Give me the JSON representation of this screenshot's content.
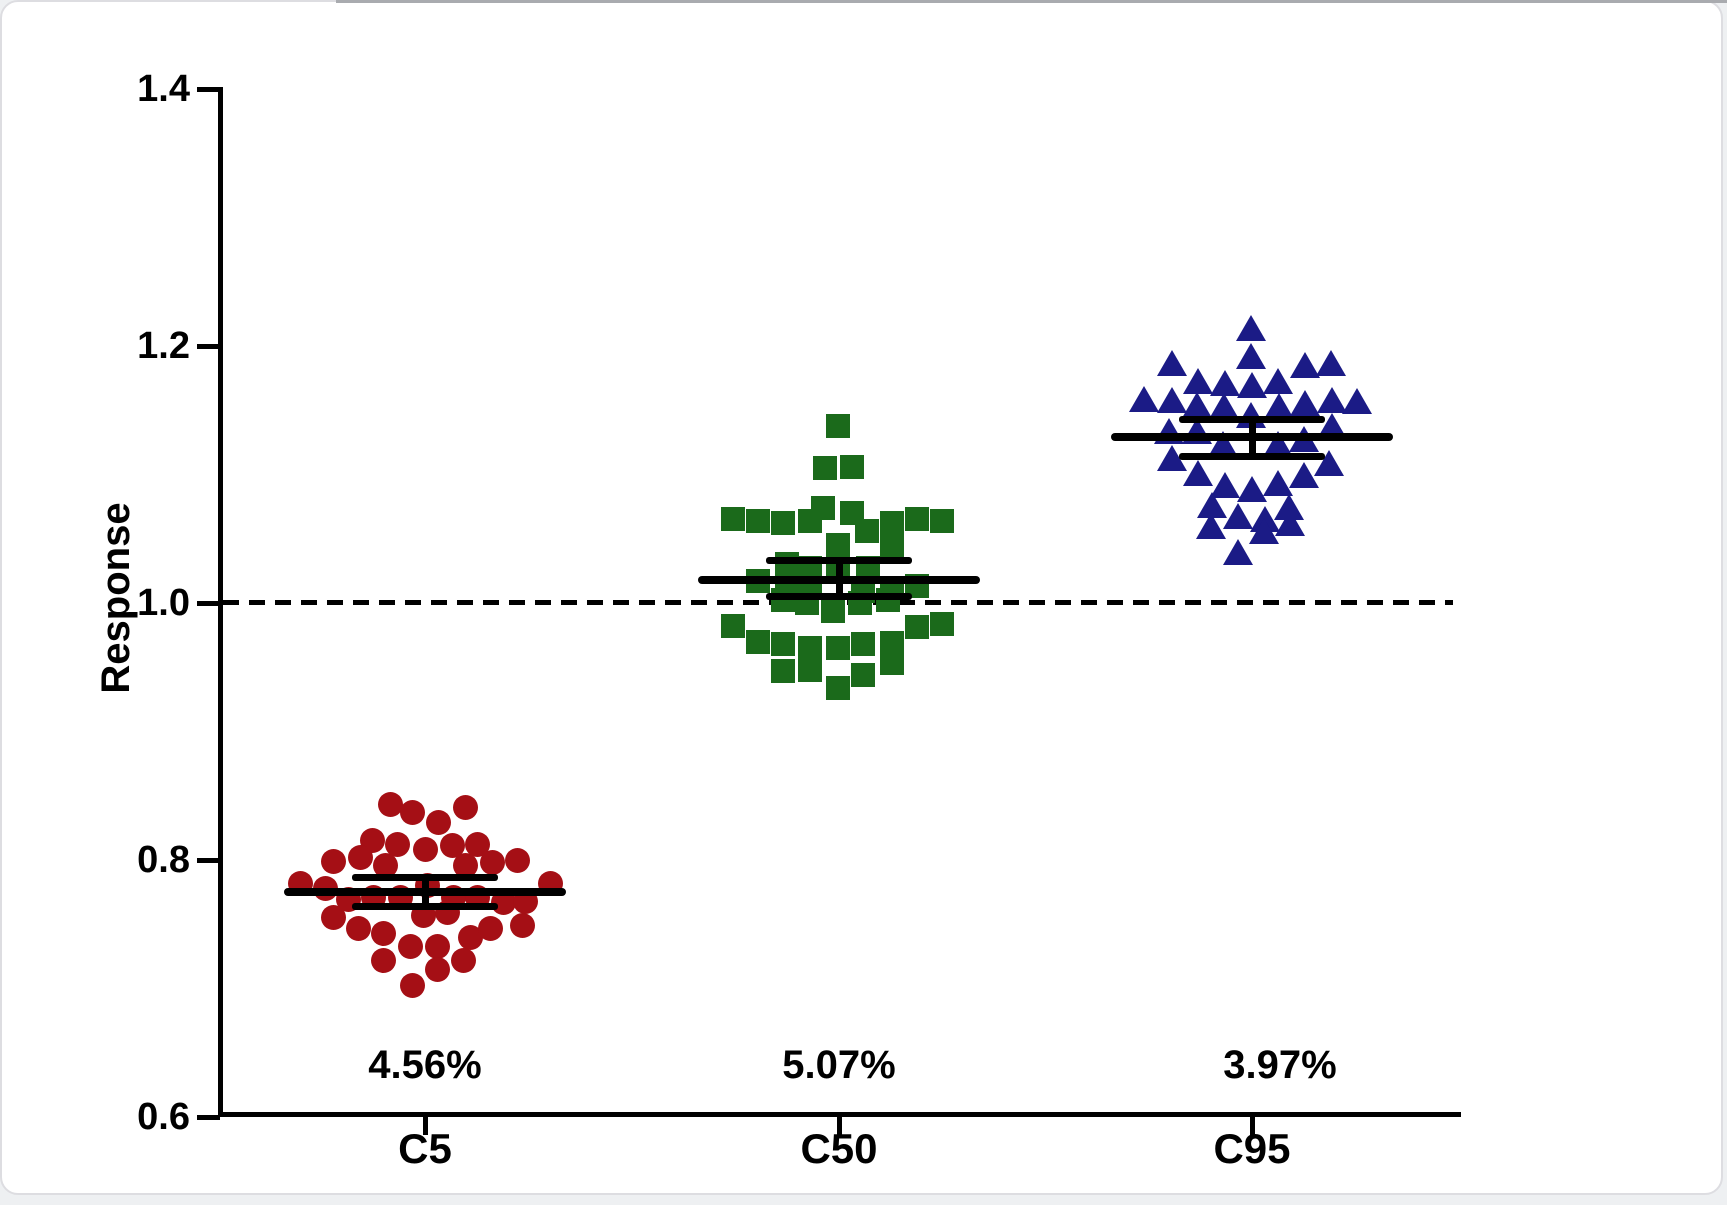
{
  "chart_data": {
    "type": "scatter",
    "subtype": "dot-plot-with-mean-error-bars",
    "title": "",
    "xlabel": "",
    "ylabel": "Response",
    "ylim": [
      0.6,
      1.4
    ],
    "yticks": [
      {
        "value": 1.4,
        "label": "1.4"
      },
      {
        "value": 1.2,
        "label": "1.2"
      },
      {
        "value": 1.0,
        "label": "1.0"
      },
      {
        "value": 0.8,
        "label": "0.8"
      },
      {
        "value": 0.6,
        "label": "0.6"
      }
    ],
    "reference_line": {
      "value": 1.0,
      "style": "dashed",
      "color": "#000000"
    },
    "grid": false,
    "legend": false,
    "axis_color": "#000000",
    "groups": [
      {
        "label": "C5",
        "cv_label": "4.56%",
        "marker": "circle",
        "color": "#A50F15",
        "mean": 0.775,
        "err_high": 0.786,
        "err_low": 0.764,
        "points": [
          [
            -35,
            0.843
          ],
          [
            -13,
            0.837
          ],
          [
            13,
            0.829
          ],
          [
            40,
            0.841
          ],
          [
            -53,
            0.815
          ],
          [
            -28,
            0.812
          ],
          [
            0,
            0.808
          ],
          [
            27,
            0.811
          ],
          [
            52,
            0.812
          ],
          [
            -92,
            0.799
          ],
          [
            -65,
            0.802
          ],
          [
            -40,
            0.796
          ],
          [
            40,
            0.796
          ],
          [
            67,
            0.798
          ],
          [
            92,
            0.8
          ],
          [
            -125,
            0.782
          ],
          [
            -100,
            0.778
          ],
          [
            125,
            0.782
          ],
          [
            -77,
            0.769
          ],
          [
            -52,
            0.771
          ],
          [
            -25,
            0.771
          ],
          [
            2,
            0.78
          ],
          [
            28,
            0.771
          ],
          [
            52,
            0.771
          ],
          [
            78,
            0.767
          ],
          [
            100,
            0.768
          ],
          [
            -92,
            0.755
          ],
          [
            -67,
            0.747
          ],
          [
            -42,
            0.743
          ],
          [
            -2,
            0.757
          ],
          [
            22,
            0.759
          ],
          [
            45,
            0.74
          ],
          [
            65,
            0.747
          ],
          [
            97,
            0.749
          ],
          [
            -15,
            0.733
          ],
          [
            12,
            0.733
          ],
          [
            -42,
            0.722
          ],
          [
            38,
            0.722
          ],
          [
            12,
            0.715
          ],
          [
            -13,
            0.702
          ]
        ]
      },
      {
        "label": "C50",
        "cv_label": "5.07%",
        "marker": "square",
        "color": "#1B6A1B",
        "mean": 1.018,
        "err_high": 1.033,
        "err_low": 1.005,
        "points": [
          [
            -1,
            1.138
          ],
          [
            -14,
            1.105
          ],
          [
            13,
            1.106
          ],
          [
            -106,
            1.065
          ],
          [
            -81,
            1.064
          ],
          [
            -56,
            1.062
          ],
          [
            -29,
            1.064
          ],
          [
            -16,
            1.074
          ],
          [
            13,
            1.07
          ],
          [
            28,
            1.056
          ],
          [
            53,
            1.062
          ],
          [
            78,
            1.065
          ],
          [
            103,
            1.064
          ],
          [
            -1,
            1.045
          ],
          [
            29,
            1.027
          ],
          [
            53,
            1.044
          ],
          [
            -52,
            1.03
          ],
          [
            -29,
            1.027
          ],
          [
            -1,
            1.025
          ],
          [
            -81,
            1.017
          ],
          [
            -52,
            1.012
          ],
          [
            -29,
            1.012
          ],
          [
            24,
            1.009
          ],
          [
            53,
            1.012
          ],
          [
            78,
            1.013
          ],
          [
            -56,
            1.002
          ],
          [
            -32,
            1.0
          ],
          [
            -6,
            0.994
          ],
          [
            21,
            1.0
          ],
          [
            49,
            1.002
          ],
          [
            -106,
            0.982
          ],
          [
            -81,
            0.97
          ],
          [
            -56,
            0.968
          ],
          [
            -29,
            0.965
          ],
          [
            -1,
            0.965
          ],
          [
            24,
            0.968
          ],
          [
            53,
            0.969
          ],
          [
            78,
            0.981
          ],
          [
            103,
            0.984
          ],
          [
            -56,
            0.947
          ],
          [
            -29,
            0.948
          ],
          [
            -1,
            0.934
          ],
          [
            24,
            0.944
          ],
          [
            53,
            0.953
          ]
        ]
      },
      {
        "label": "C95",
        "cv_label": "3.97%",
        "marker": "triangle",
        "color": "#1B1B86",
        "mean": 1.129,
        "err_high": 1.143,
        "err_low": 1.114,
        "points": [
          [
            -1,
            1.214
          ],
          [
            -1,
            1.192
          ],
          [
            -80,
            1.187
          ],
          [
            53,
            1.185
          ],
          [
            79,
            1.187
          ],
          [
            -54,
            1.173
          ],
          [
            -27,
            1.171
          ],
          [
            0,
            1.17
          ],
          [
            26,
            1.173
          ],
          [
            -108,
            1.159
          ],
          [
            -80,
            1.158
          ],
          [
            -55,
            1.154
          ],
          [
            -28,
            1.153
          ],
          [
            27,
            1.153
          ],
          [
            53,
            1.156
          ],
          [
            80,
            1.158
          ],
          [
            105,
            1.157
          ],
          [
            -1,
            1.146
          ],
          [
            -83,
            1.134
          ],
          [
            -55,
            1.134
          ],
          [
            80,
            1.138
          ],
          [
            -29,
            1.124
          ],
          [
            26,
            1.124
          ],
          [
            52,
            1.128
          ],
          [
            -80,
            1.113
          ],
          [
            77,
            1.109
          ],
          [
            -54,
            1.101
          ],
          [
            -27,
            1.092
          ],
          [
            0,
            1.089
          ],
          [
            26,
            1.093
          ],
          [
            52,
            1.1
          ],
          [
            -40,
            1.076
          ],
          [
            -14,
            1.068
          ],
          [
            13,
            1.065
          ],
          [
            37,
            1.075
          ],
          [
            -41,
            1.06
          ],
          [
            -14,
            1.04
          ],
          [
            12,
            1.056
          ],
          [
            38,
            1.062
          ]
        ]
      }
    ]
  }
}
